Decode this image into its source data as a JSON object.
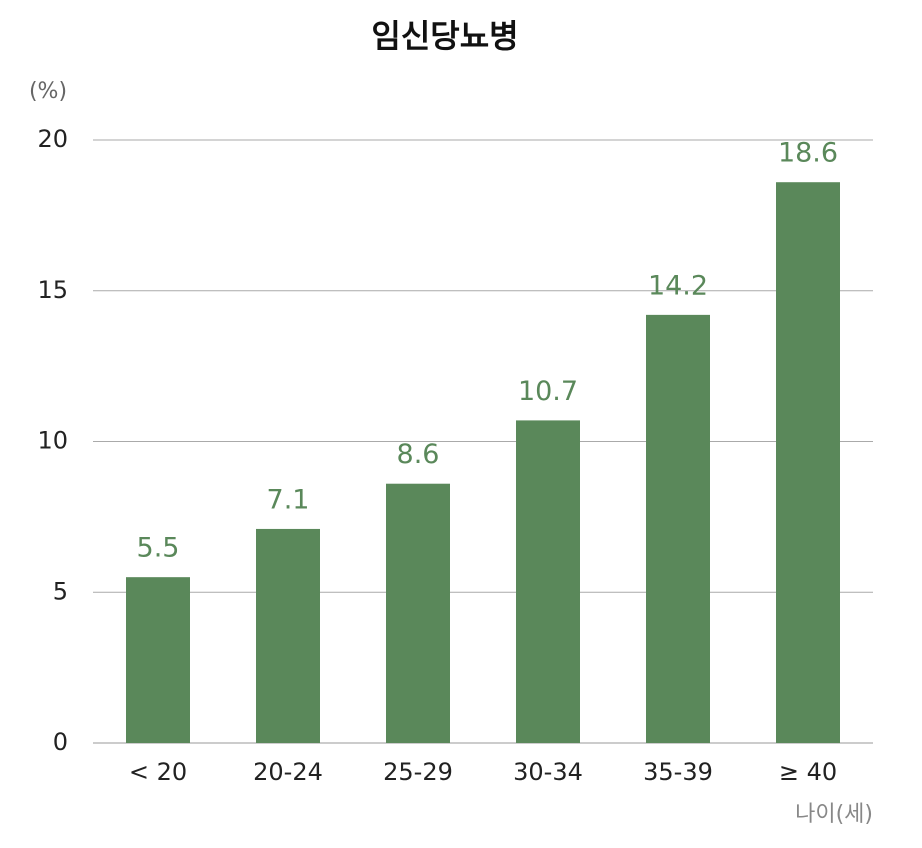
{
  "chart_data": {
    "type": "bar",
    "title": "임신당뇨병",
    "y_label": "(%)",
    "x_label": "나이(세)",
    "categories": [
      "< 20",
      "20-24",
      "25-29",
      "30-34",
      "35-39",
      "≥ 40"
    ],
    "values": [
      5.5,
      7.1,
      8.6,
      10.7,
      14.2,
      18.6
    ],
    "color": "#5a885a",
    "ylim": [
      0,
      20
    ],
    "yticks": [
      0,
      5,
      10,
      15,
      20
    ],
    "grid": true
  }
}
